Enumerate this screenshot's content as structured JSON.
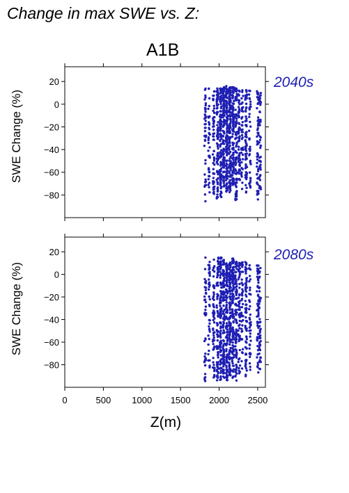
{
  "title": "Change in max SWE vs. Z:",
  "scenario": "A1B",
  "xlabel": "Z(m)",
  "colors": {
    "points": "#1f1fb4",
    "period_label": "#1f1fb4"
  },
  "chart_data": [
    {
      "type": "scatter",
      "period": "2040s",
      "ylabel": "SWE Change (%)",
      "xlim": [
        0,
        2600
      ],
      "ylim": [
        -100,
        33
      ],
      "x_ticks": [
        0,
        500,
        1000,
        1500,
        2000,
        2500
      ],
      "x_tick_labels_shown": false,
      "y_ticks": [
        20,
        0,
        -20,
        -40,
        -60,
        -80
      ],
      "y_tick_labels": [
        "20",
        "0",
        "−20",
        "−40",
        "−60",
        "−80"
      ],
      "grid": false,
      "point_color": "#1f1fb4",
      "columns": [
        {
          "x": 1820,
          "y_min": -86,
          "y_max": 14,
          "n": 40
        },
        {
          "x": 1870,
          "y_min": -78,
          "y_max": 14,
          "n": 40
        },
        {
          "x": 1930,
          "y_min": -80,
          "y_max": 13,
          "n": 55
        },
        {
          "x": 1980,
          "y_min": -84,
          "y_max": 14,
          "n": 80
        },
        {
          "x": 2020,
          "y_min": -82,
          "y_max": 14,
          "n": 110
        },
        {
          "x": 2060,
          "y_min": -76,
          "y_max": 15,
          "n": 110
        },
        {
          "x": 2100,
          "y_min": -80,
          "y_max": 16,
          "n": 120
        },
        {
          "x": 2140,
          "y_min": -78,
          "y_max": 15,
          "n": 120
        },
        {
          "x": 2180,
          "y_min": -80,
          "y_max": 15,
          "n": 110
        },
        {
          "x": 2220,
          "y_min": -85,
          "y_max": 14,
          "n": 90
        },
        {
          "x": 2260,
          "y_min": -72,
          "y_max": 14,
          "n": 60
        },
        {
          "x": 2300,
          "y_min": -75,
          "y_max": 13,
          "n": 40
        },
        {
          "x": 2350,
          "y_min": -78,
          "y_max": 13,
          "n": 70
        },
        {
          "x": 2400,
          "y_min": -74,
          "y_max": 12,
          "n": 40
        },
        {
          "x": 2500,
          "y_min": -84,
          "y_max": 12,
          "n": 55
        },
        {
          "x": 2530,
          "y_min": -76,
          "y_max": 10,
          "n": 50
        }
      ]
    },
    {
      "type": "scatter",
      "period": "2080s",
      "ylabel": "SWE Change (%)",
      "xlim": [
        0,
        2600
      ],
      "ylim": [
        -100,
        33
      ],
      "x_ticks": [
        0,
        500,
        1000,
        1500,
        2000,
        2500
      ],
      "x_tick_labels": [
        "0",
        "500",
        "1000",
        "1500",
        "2000",
        "2500"
      ],
      "y_ticks": [
        20,
        0,
        -20,
        -40,
        -60,
        -80
      ],
      "y_tick_labels": [
        "20",
        "0",
        "−20",
        "−40",
        "−60",
        "−80"
      ],
      "grid": false,
      "point_color": "#1f1fb4",
      "columns": [
        {
          "x": 1820,
          "y_min": -95,
          "y_max": 15,
          "n": 40
        },
        {
          "x": 1870,
          "y_min": -94,
          "y_max": 15,
          "n": 40
        },
        {
          "x": 1930,
          "y_min": -94,
          "y_max": 14,
          "n": 55
        },
        {
          "x": 1980,
          "y_min": -95,
          "y_max": 15,
          "n": 80
        },
        {
          "x": 2020,
          "y_min": -94,
          "y_max": 15,
          "n": 110
        },
        {
          "x": 2060,
          "y_min": -92,
          "y_max": 13,
          "n": 110
        },
        {
          "x": 2100,
          "y_min": -94,
          "y_max": 10,
          "n": 120
        },
        {
          "x": 2140,
          "y_min": -90,
          "y_max": 12,
          "n": 120
        },
        {
          "x": 2180,
          "y_min": -92,
          "y_max": 14,
          "n": 110
        },
        {
          "x": 2220,
          "y_min": -94,
          "y_max": 12,
          "n": 90
        },
        {
          "x": 2260,
          "y_min": -88,
          "y_max": 13,
          "n": 60
        },
        {
          "x": 2300,
          "y_min": -90,
          "y_max": 11,
          "n": 40
        },
        {
          "x": 2350,
          "y_min": -92,
          "y_max": 11,
          "n": 70
        },
        {
          "x": 2400,
          "y_min": -90,
          "y_max": 10,
          "n": 40
        },
        {
          "x": 2500,
          "y_min": -88,
          "y_max": 8,
          "n": 55
        },
        {
          "x": 2530,
          "y_min": -84,
          "y_max": 7,
          "n": 50
        }
      ]
    }
  ]
}
